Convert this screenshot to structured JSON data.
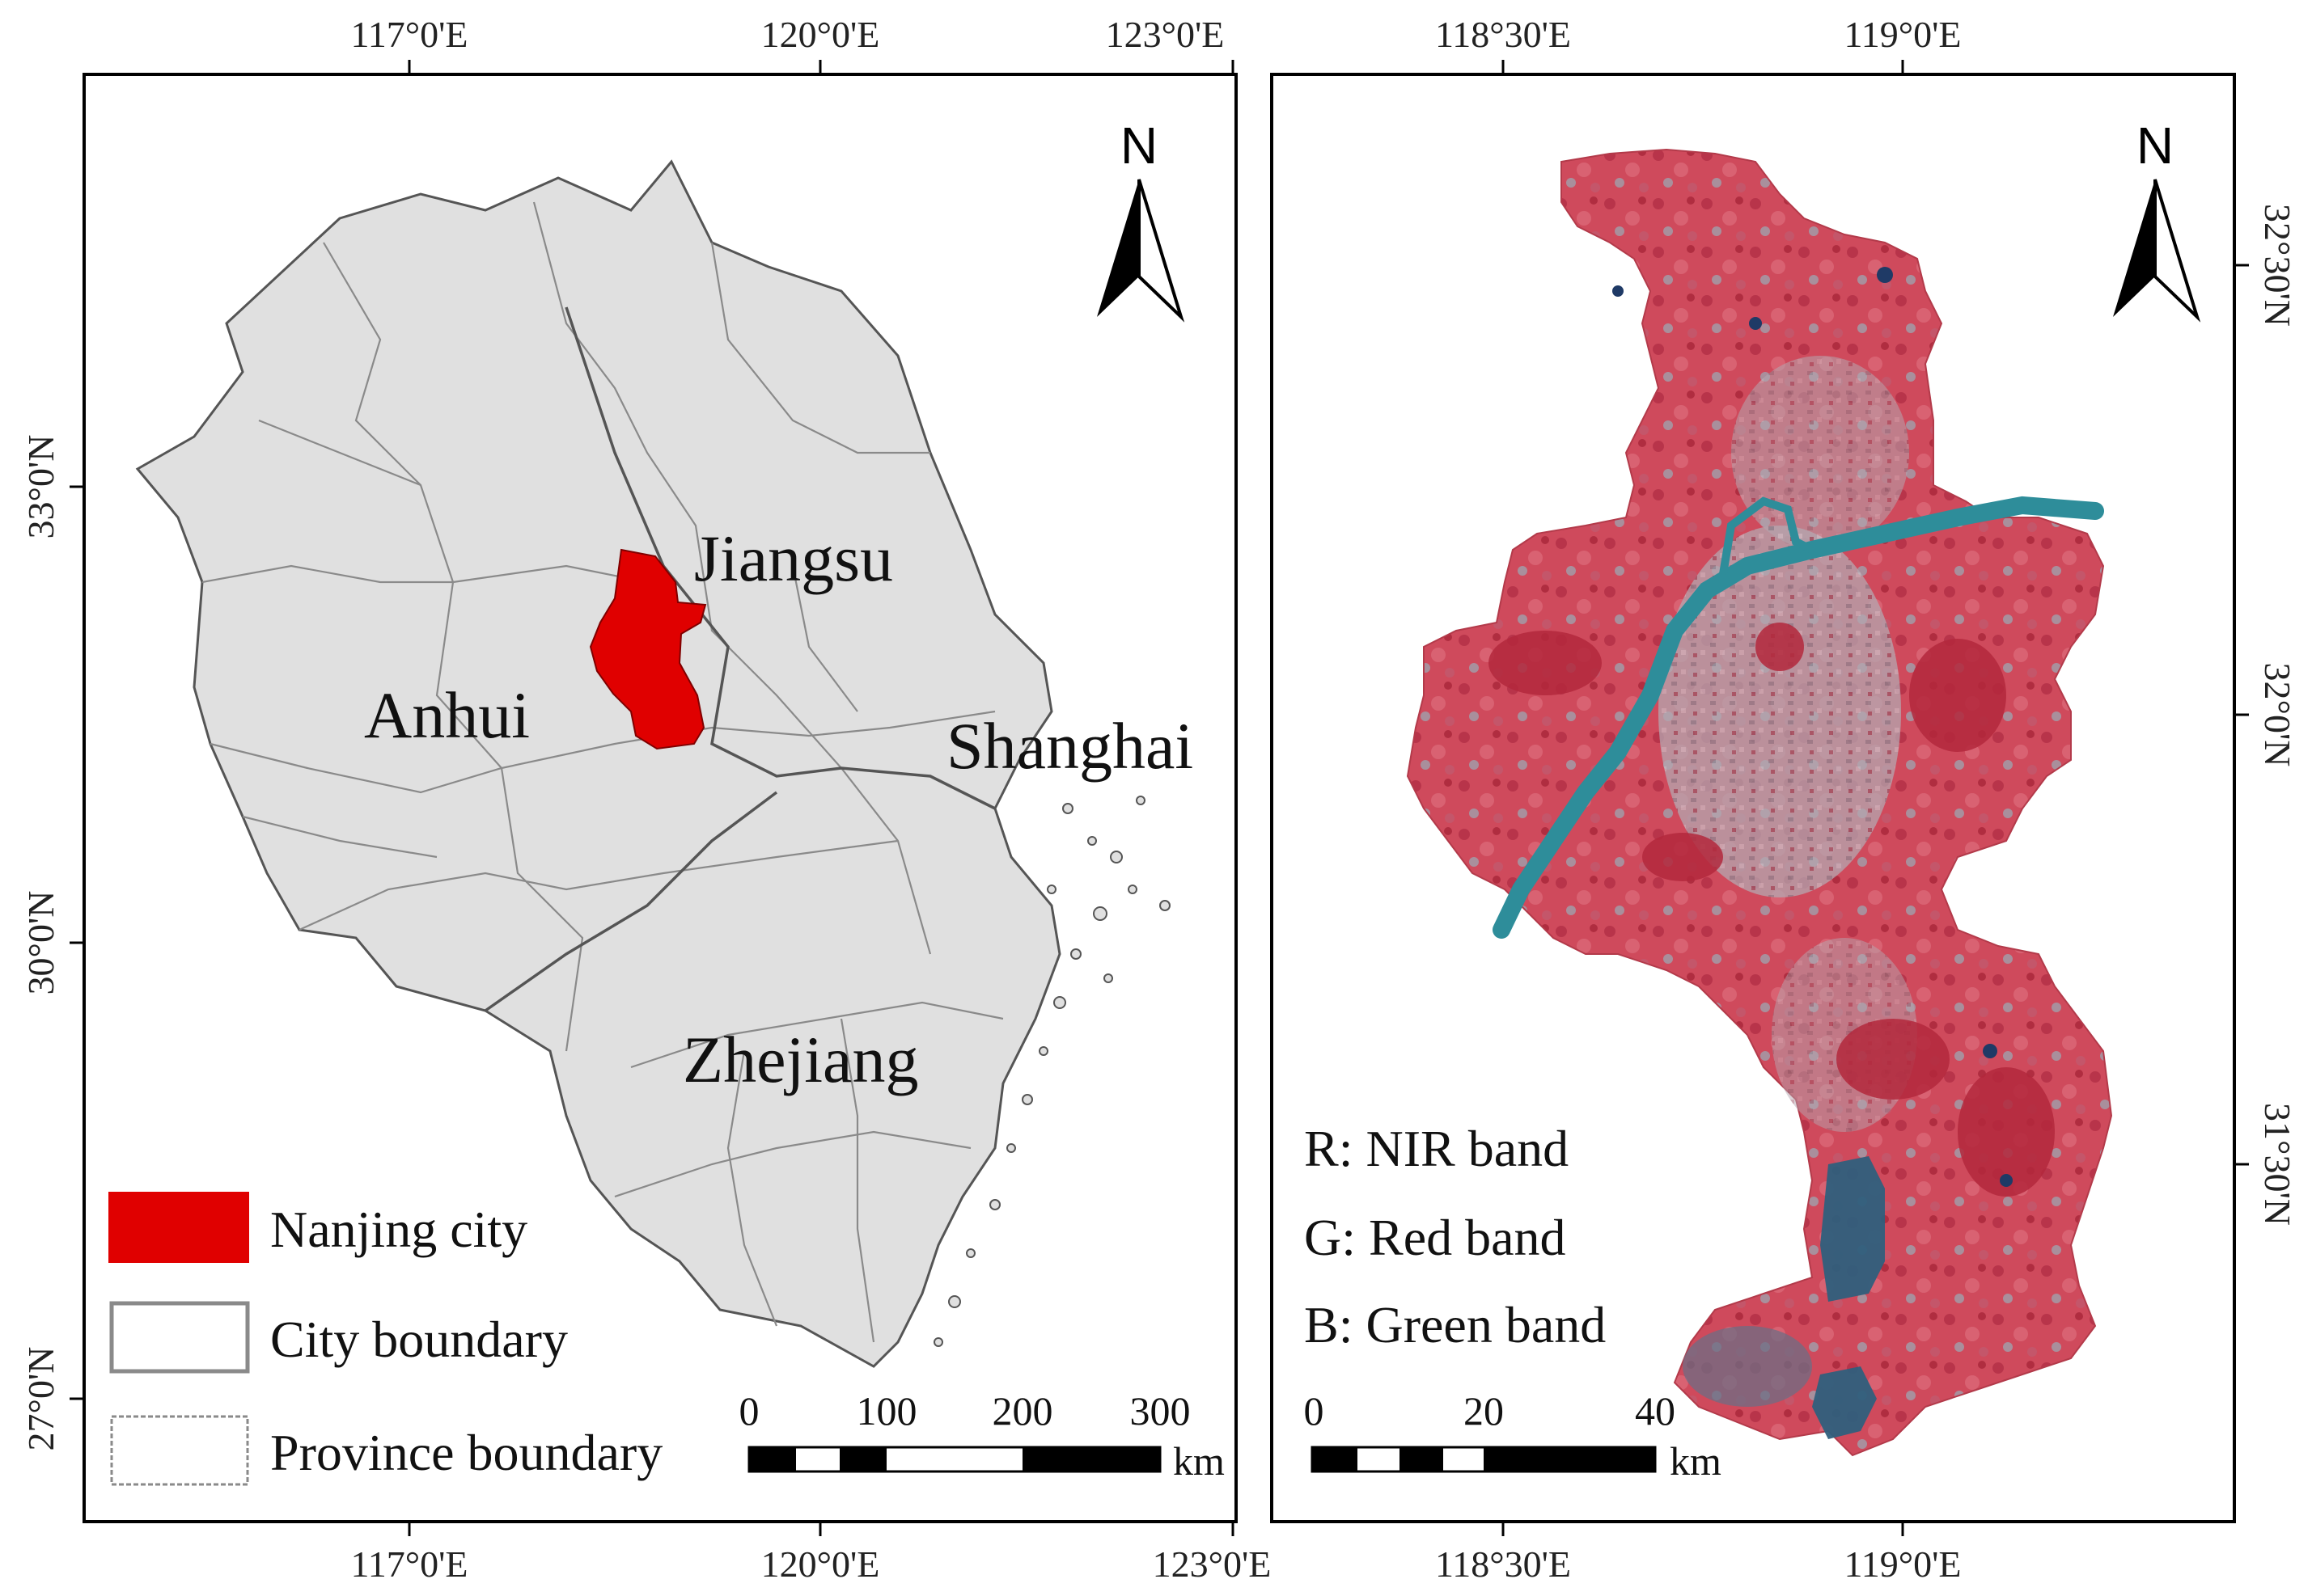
{
  "left_map": {
    "top_ticks": [
      "117°0'E",
      "120°0'E",
      "123°0'E"
    ],
    "bottom_ticks": [
      "117°0'E",
      "120°0'E",
      "123°0'E"
    ],
    "left_ticks": [
      "33°0'N",
      "30°0'N",
      "27°0'N"
    ],
    "regions": {
      "jiangsu": "Jiangsu",
      "anhui": "Anhui",
      "shanghai": "Shanghai",
      "zhejiang": "Zhejiang"
    },
    "north_label": "N",
    "legend": {
      "nanjing": "Nanjing city",
      "city_boundary": "City boundary",
      "province_boundary": "Province boundary"
    },
    "scale": {
      "labels": [
        "0",
        "100",
        "200",
        "300"
      ],
      "unit": "km"
    },
    "colors": {
      "nanjing": "#e00000",
      "land": "#e0e0e0",
      "boundary": "#888888"
    }
  },
  "right_map": {
    "top_ticks": [
      "118°30'E",
      "119°0'E"
    ],
    "bottom_ticks": [
      "118°30'E",
      "119°0'E"
    ],
    "right_ticks": [
      "32°30'N",
      "32°0'N",
      "31°30'N"
    ],
    "north_label": "N",
    "bands": {
      "r": "R: NIR band",
      "g": "G: Red band",
      "b": "B: Green band"
    },
    "scale": {
      "labels": [
        "0",
        "20",
        "40"
      ],
      "unit": "km"
    },
    "colors": {
      "vegetation": "#c8394a",
      "urban": "#a8a0a8",
      "water": "#2e8d9a",
      "lake": "#2f5f7c"
    }
  }
}
